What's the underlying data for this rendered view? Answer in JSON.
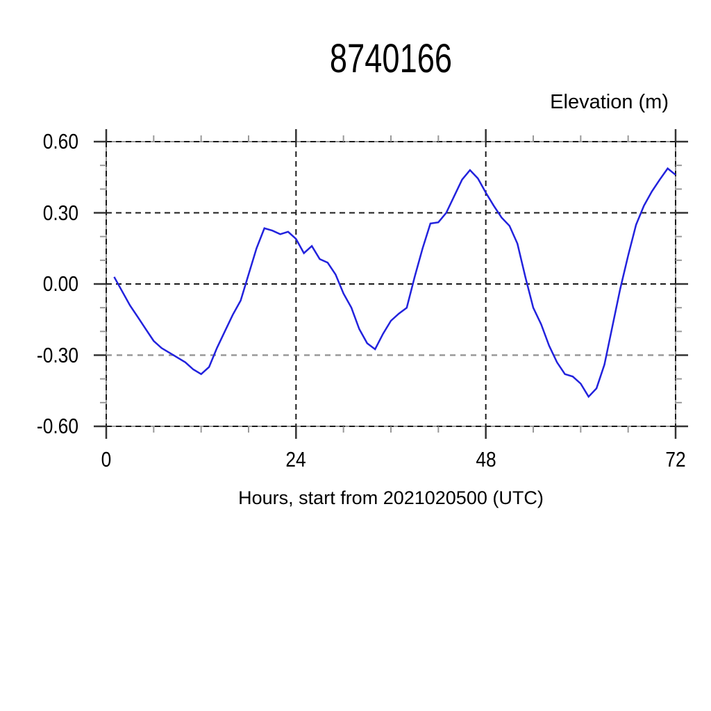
{
  "page": {
    "background": "#ffffff"
  },
  "chart_data": {
    "type": "line",
    "title": "8740166",
    "y_axis_label": "Elevation (m)",
    "x_axis_label": "Hours, start from 2021020500 (UTC)",
    "xlim": [
      0,
      72
    ],
    "ylim": [
      -0.6,
      0.6
    ],
    "x_ticks_major": [
      0,
      24,
      48,
      72
    ],
    "x_tick_labels": [
      "0",
      "24",
      "48",
      "72"
    ],
    "x_minor_step": 6,
    "y_ticks_major": [
      0.6,
      0.3,
      0.0,
      -0.3,
      -0.6
    ],
    "y_tick_labels": [
      "0.60",
      "0.30",
      "0.00",
      "-0.30",
      "-0.60"
    ],
    "y_minor_step": 0.1,
    "grid": {
      "horizontal_dark": [
        0.6,
        0.3,
        0.0,
        -0.6
      ],
      "horizontal_light": [
        -0.3
      ],
      "vertical": [
        0,
        24,
        48,
        72
      ]
    },
    "legend": "none",
    "colors": {
      "line": "#2222dd",
      "frame": "#999999",
      "grid_dark": "#1a1a1a",
      "grid_light": "#999999",
      "tick_major": "#333333",
      "tick_minor": "#999999",
      "text": "#000000"
    },
    "series": [
      {
        "name": "elevation",
        "x": [
          1,
          2,
          3,
          4,
          5,
          6,
          7,
          8,
          9,
          10,
          11,
          12,
          13,
          14,
          15,
          16,
          17,
          18,
          19,
          20,
          21,
          22,
          23,
          24,
          25,
          26,
          27,
          28,
          29,
          30,
          31,
          32,
          33,
          34,
          35,
          36,
          37,
          38,
          39,
          40,
          41,
          42,
          43,
          44,
          45,
          46,
          47,
          48,
          49,
          50,
          51,
          52,
          53,
          54,
          55,
          56,
          57,
          58,
          59,
          60,
          61,
          62,
          63,
          64,
          65,
          66,
          67,
          68,
          69,
          70,
          71,
          72
        ],
        "y": [
          0.03,
          -0.03,
          -0.09,
          -0.14,
          -0.19,
          -0.24,
          -0.27,
          -0.29,
          -0.31,
          -0.33,
          -0.36,
          -0.38,
          -0.35,
          -0.27,
          -0.2,
          -0.13,
          -0.07,
          0.04,
          0.15,
          0.235,
          0.225,
          0.21,
          0.22,
          0.19,
          0.13,
          0.16,
          0.105,
          0.09,
          0.04,
          -0.04,
          -0.1,
          -0.19,
          -0.25,
          -0.275,
          -0.21,
          -0.155,
          -0.125,
          -0.1,
          0.03,
          0.15,
          0.255,
          0.26,
          0.3,
          0.37,
          0.44,
          0.48,
          0.445,
          0.385,
          0.33,
          0.28,
          0.245,
          0.17,
          0.03,
          -0.1,
          -0.17,
          -0.26,
          -0.33,
          -0.38,
          -0.39,
          -0.42,
          -0.475,
          -0.44,
          -0.34,
          -0.18,
          -0.02,
          0.12,
          0.25,
          0.33,
          0.39,
          0.44,
          0.487,
          0.46
        ]
      }
    ]
  }
}
